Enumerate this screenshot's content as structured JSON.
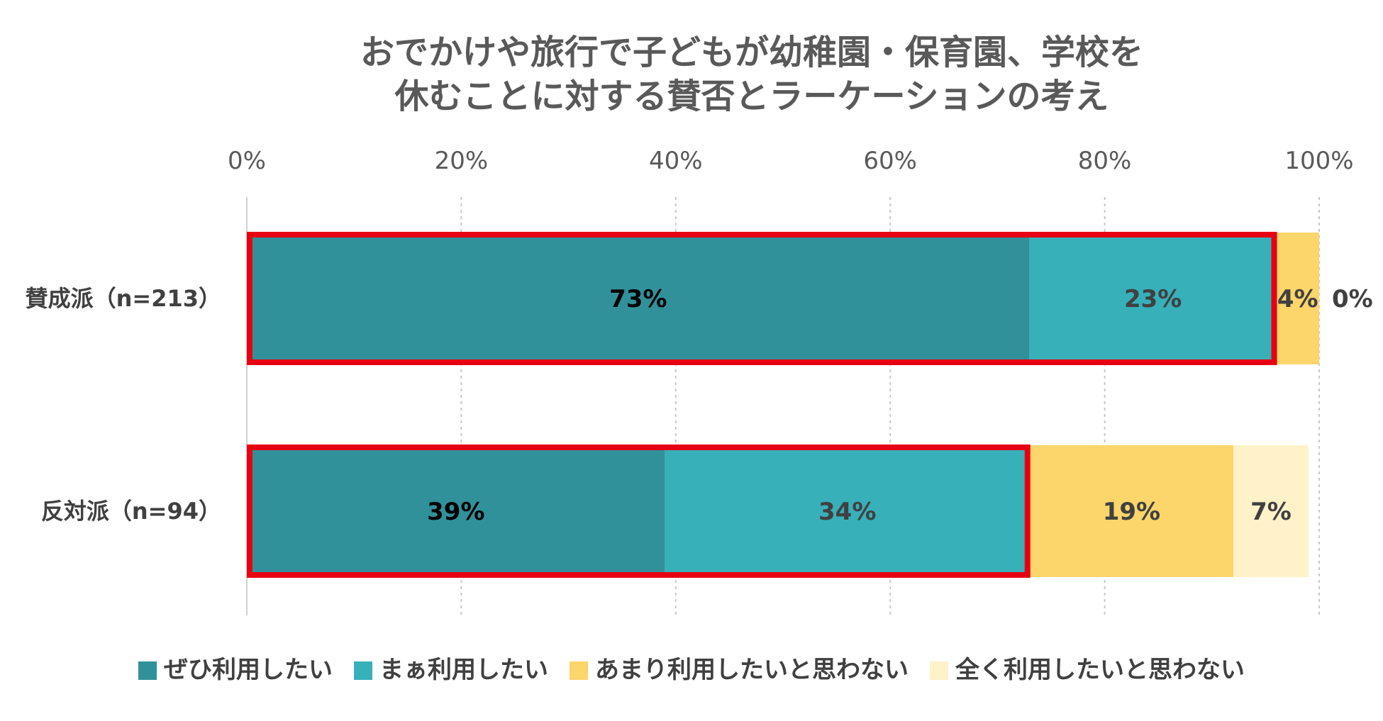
{
  "chart_data": {
    "type": "bar",
    "orientation": "horizontal",
    "stacked": true,
    "title_lines": [
      "おでかけや旅行で子どもが幼稚園・保育園、学校を",
      "休むことに対する賛否とラーケーションの考え"
    ],
    "x_ticks": [
      "0%",
      "20%",
      "40%",
      "60%",
      "80%",
      "100%"
    ],
    "xlim": [
      0,
      100
    ],
    "grid": true,
    "legend_position": "bottom",
    "categories": [
      "賛成派（n=213）",
      "反対派（n=94）"
    ],
    "series": [
      {
        "name": "ぜひ利用したい",
        "color": "#31919A",
        "text_color": "#000000",
        "values": [
          73,
          39
        ],
        "labels": [
          "73%",
          "39%"
        ]
      },
      {
        "name": "まぁ利用したい",
        "color": "#37B0BA",
        "text_color": "#404040",
        "values": [
          23,
          34
        ],
        "labels": [
          "23%",
          "34%"
        ]
      },
      {
        "name": "あまり利用したいと思わない",
        "color": "#FCD56B",
        "text_color": "#404040",
        "values": [
          4,
          19
        ],
        "labels": [
          "4%",
          "19%"
        ]
      },
      {
        "name": "全く利用したいと思わない",
        "color": "#FFF1C8",
        "text_color": "#404040",
        "values": [
          0,
          7
        ],
        "labels": [
          "0%",
          "7%"
        ]
      }
    ],
    "highlight_color": "#E60012"
  }
}
